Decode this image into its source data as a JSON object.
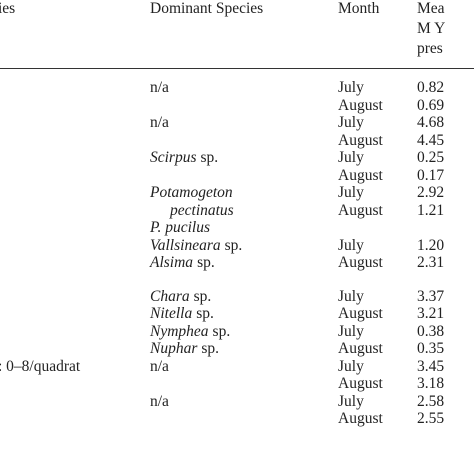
{
  "header": {
    "site": "ies",
    "species": "Dominant Species",
    "month": "Month",
    "value": [
      "Mea",
      "M Y",
      "pres"
    ]
  },
  "rows": [
    {
      "species": [
        {
          "text": "n/a"
        }
      ],
      "month": "July",
      "value": "0.82"
    },
    {
      "month": "August",
      "value": "0.69"
    },
    {
      "species": [
        {
          "text": "n/a"
        }
      ],
      "month": "July",
      "value": "4.68"
    },
    {
      "month": "August",
      "value": "4.45"
    },
    {
      "species": [
        {
          "text": "Scirpus",
          "italic": true
        },
        {
          "text": "sp."
        }
      ],
      "month": "July",
      "value": "0.25"
    },
    {
      "month": "August",
      "value": "0.17"
    },
    {
      "species": [
        {
          "text": "Potamogeton",
          "italic": true
        }
      ],
      "month": "July",
      "value": "2.92"
    },
    {
      "species": [
        {
          "text": "pectinatus",
          "italic": true
        }
      ],
      "month": "August",
      "value": "1.21"
    },
    {
      "species": [
        {
          "text": "P. pucilus",
          "italic": true
        }
      ]
    },
    {
      "species": [
        {
          "text": "Vallsineara",
          "italic": true
        },
        {
          "text": "sp."
        }
      ],
      "month": "July",
      "value": "1.20"
    },
    {
      "species": [
        {
          "text": "Alsima",
          "italic": true
        },
        {
          "text": "sp."
        }
      ],
      "month": "August",
      "value": "2.31"
    },
    {
      "species": [
        {
          "text": "Chara",
          "italic": true
        },
        {
          "text": "sp."
        }
      ],
      "month": "July",
      "value": "3.37"
    },
    {
      "species": [
        {
          "text": "Nitella",
          "italic": true
        },
        {
          "text": "sp."
        }
      ],
      "month": "August",
      "value": "3.21"
    },
    {
      "species": [
        {
          "text": "Nymphea",
          "italic": true
        },
        {
          "text": "sp."
        }
      ],
      "month": "July",
      "value": "0.38"
    },
    {
      "species": [
        {
          "text": "Nuphar",
          "italic": true
        },
        {
          "text": "sp."
        }
      ],
      "month": "August",
      "value": "0.35"
    },
    {
      "site": ": 0–8/quadrat",
      "species": [
        {
          "text": "n/a"
        }
      ],
      "month": "July",
      "value": "3.45"
    },
    {
      "month": "August",
      "value": "3.18"
    },
    {
      "species": [
        {
          "text": "n/a"
        }
      ],
      "month": "July",
      "value": "2.58"
    },
    {
      "month": "August",
      "value": "2.55"
    }
  ]
}
